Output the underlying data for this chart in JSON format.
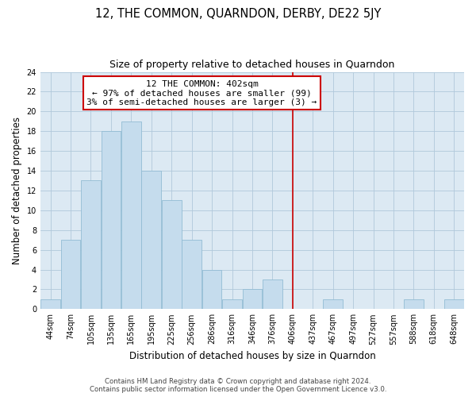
{
  "title": "12, THE COMMON, QUARNDON, DERBY, DE22 5JY",
  "subtitle": "Size of property relative to detached houses in Quarndon",
  "xlabel": "Distribution of detached houses by size in Quarndon",
  "ylabel": "Number of detached properties",
  "bin_labels": [
    "44sqm",
    "74sqm",
    "105sqm",
    "135sqm",
    "165sqm",
    "195sqm",
    "225sqm",
    "256sqm",
    "286sqm",
    "316sqm",
    "346sqm",
    "376sqm",
    "406sqm",
    "437sqm",
    "467sqm",
    "497sqm",
    "527sqm",
    "557sqm",
    "588sqm",
    "618sqm",
    "648sqm"
  ],
  "bar_values": [
    1,
    7,
    13,
    18,
    19,
    14,
    11,
    7,
    4,
    1,
    2,
    3,
    0,
    0,
    1,
    0,
    0,
    0,
    1,
    0,
    1
  ],
  "bar_color": "#c5dced",
  "bar_edge_color": "#92bcd4",
  "vline_x_index": 12,
  "vline_color": "#cc0000",
  "annotation_title": "12 THE COMMON: 402sqm",
  "annotation_line1": "← 97% of detached houses are smaller (99)",
  "annotation_line2": "3% of semi-detached houses are larger (3) →",
  "annotation_box_color": "#ffffff",
  "annotation_box_edge": "#cc0000",
  "ylim": [
    0,
    24
  ],
  "yticks": [
    0,
    2,
    4,
    6,
    8,
    10,
    12,
    14,
    16,
    18,
    20,
    22,
    24
  ],
  "footer1": "Contains HM Land Registry data © Crown copyright and database right 2024.",
  "footer2": "Contains public sector information licensed under the Open Government Licence v3.0.",
  "bg_color": "#ffffff",
  "plot_bg_color": "#dce9f3",
  "grid_color": "#b0c8db",
  "title_fontsize": 10.5,
  "subtitle_fontsize": 9,
  "axis_label_fontsize": 8.5,
  "tick_fontsize": 7,
  "annotation_fontsize": 8
}
